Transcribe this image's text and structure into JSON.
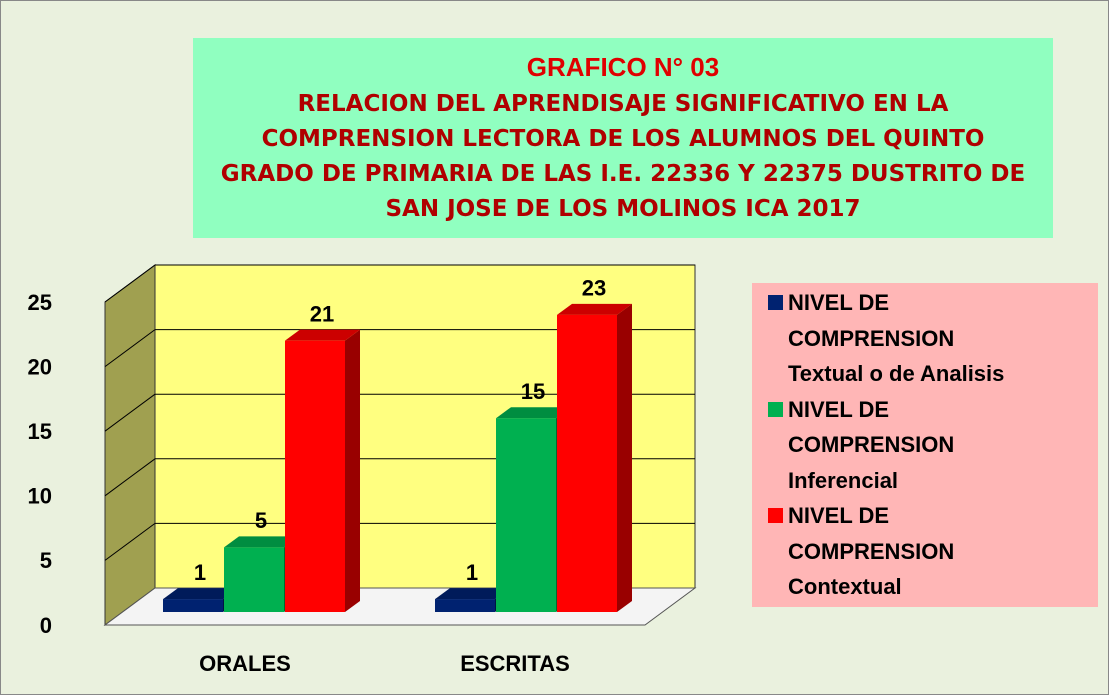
{
  "chart_data": {
    "type": "bar3d",
    "title": "GRAFICO  N° 03",
    "subtitle": "RELACION DEL APRENDISAJE SIGNIFICATIVO EN LA COMPRENSION LECTORA DE LOS ALUMNOS DEL QUINTO GRADO DE PRIMARIA DE LAS I.E. 22336 Y 22375 DUSTRITO DE SAN JOSE DE LOS MOLINOS ICA 2017",
    "categories": [
      "ORALES",
      "ESCRITAS"
    ],
    "series": [
      {
        "name": "NIVEL DE\nCOMPRENSION\nTextual o de Analisis",
        "color": "#002270",
        "values": [
          1,
          1
        ]
      },
      {
        "name": "NIVEL DE\nCOMPRENSION\nInferencial",
        "color": "#00b050",
        "values": [
          5,
          15
        ]
      },
      {
        "name": "NIVEL DE\nCOMPRENSION\nContextual",
        "color": "#ff0000",
        "values": [
          21,
          23
        ]
      }
    ],
    "ylim": [
      0,
      25
    ],
    "yticks": [
      0,
      5,
      10,
      15,
      20,
      25
    ],
    "grid": true,
    "legend": "right"
  }
}
